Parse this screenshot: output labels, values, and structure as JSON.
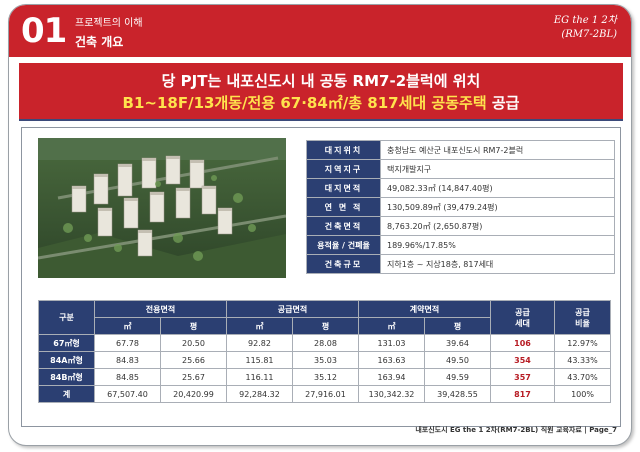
{
  "header": {
    "section_number": "01",
    "section_subtitle": "프로젝트의 이해",
    "section_title": "건축 개요",
    "brand_line1": "EG the 1 2차",
    "brand_line2": "(RM7-2BL)"
  },
  "banner": {
    "line1": "당 PJT는 내포신도시 내 공동 RM7-2블럭에 위치",
    "line2_highlight": "B1~18F/13개동/전용 67·84㎡/총 817세대 공동주택",
    "line2_suffix": " 공급"
  },
  "site_info": [
    {
      "label": "대지위치",
      "value": "충청남도 예산군 내포신도시 RM7-2블럭"
    },
    {
      "label": "지역지구",
      "value": "택지개발지구"
    },
    {
      "label": "대지면적",
      "value": "49,082.33㎡ (14,847.40평)"
    },
    {
      "label": "연 면 적",
      "value": "130,509.89㎡ (39,479.24평)"
    },
    {
      "label": "건축면적",
      "value": "8,763.20㎡ (2,650.87평)"
    },
    {
      "label": "용적율 / 건폐율",
      "value": "189.96%/17.85%"
    },
    {
      "label": "건축규모",
      "value": "지하1층 ~ 지상18층, 817세대"
    }
  ],
  "area_table": {
    "col_type": "구분",
    "group_exclusive": "전용면적",
    "group_supply": "공급면적",
    "group_contract": "계약면적",
    "col_units": "공급\n세대",
    "col_ratio": "공급\n비율",
    "unit_m2": "㎡",
    "unit_pyeong": "평",
    "rows": [
      {
        "type": "67㎡형",
        "ex_m2": "67.78",
        "ex_py": "20.50",
        "su_m2": "92.82",
        "su_py": "28.08",
        "co_m2": "131.03",
        "co_py": "39.64",
        "units": "106",
        "ratio": "12.97%"
      },
      {
        "type": "84A㎡형",
        "ex_m2": "84.83",
        "ex_py": "25.66",
        "su_m2": "115.81",
        "su_py": "35.03",
        "co_m2": "163.63",
        "co_py": "49.50",
        "units": "354",
        "ratio": "43.33%"
      },
      {
        "type": "84B㎡형",
        "ex_m2": "84.85",
        "ex_py": "25.67",
        "su_m2": "116.11",
        "su_py": "35.12",
        "co_m2": "163.94",
        "co_py": "49.59",
        "units": "357",
        "ratio": "43.70%"
      },
      {
        "type": "계",
        "ex_m2": "67,507.40",
        "ex_py": "20,420.99",
        "su_m2": "92,284.32",
        "su_py": "27,916.01",
        "co_m2": "130,342.32",
        "co_py": "39,428.55",
        "units": "817",
        "ratio": "100%"
      }
    ]
  },
  "footer": "내포신도시 EG the 1 2차(RM7-2BL) 직원 교육자료 | Page_7",
  "colors": {
    "brand_red": "#c9232b",
    "navy": "#2b3f72",
    "highlight_yellow": "#ffe34d"
  }
}
